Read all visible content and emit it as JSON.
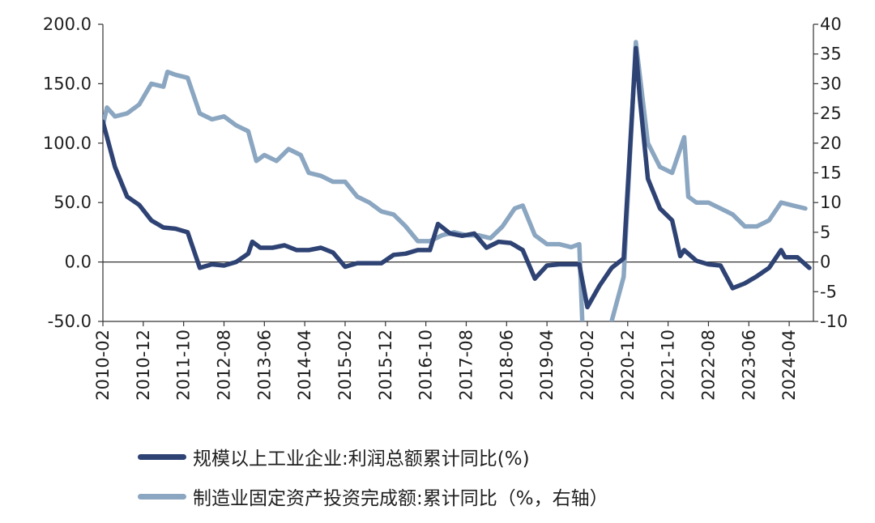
{
  "chart_data": {
    "type": "line",
    "x": [
      "2010-02",
      "2010-12",
      "2011-10",
      "2012-08",
      "2013-06",
      "2014-04",
      "2015-02",
      "2015-12",
      "2016-10",
      "2017-08",
      "2018-06",
      "2019-04",
      "2020-02",
      "2020-12",
      "2021-10",
      "2022-08",
      "2023-06",
      "2024-04"
    ],
    "y_left": {
      "ylim": [
        -50,
        200
      ],
      "ticks": [
        "200.0",
        "150.0",
        "100.0",
        "50.0",
        "0.0",
        "-50.0"
      ]
    },
    "y_right": {
      "ylim": [
        -10,
        40
      ],
      "ticks": [
        "40",
        "35",
        "30",
        "25",
        "20",
        "15",
        "10",
        "5",
        "0",
        "-5",
        "-10"
      ]
    },
    "series": [
      {
        "name": "规模以上工业企业:利润总额累计同比(%)",
        "axis": "left",
        "color": "#2e4374",
        "points": [
          [
            "2010-02",
            118
          ],
          [
            "2010-05",
            80
          ],
          [
            "2010-08",
            55
          ],
          [
            "2010-11",
            48
          ],
          [
            "2011-02",
            35
          ],
          [
            "2011-05",
            29
          ],
          [
            "2011-08",
            28
          ],
          [
            "2011-11",
            25
          ],
          [
            "2012-02",
            -5
          ],
          [
            "2012-05",
            -2
          ],
          [
            "2012-08",
            -3
          ],
          [
            "2012-11",
            0
          ],
          [
            "2013-02",
            7
          ],
          [
            "2013-03",
            17
          ],
          [
            "2013-05",
            12
          ],
          [
            "2013-08",
            12
          ],
          [
            "2013-11",
            14
          ],
          [
            "2014-02",
            10
          ],
          [
            "2014-05",
            10
          ],
          [
            "2014-08",
            12
          ],
          [
            "2014-11",
            8
          ],
          [
            "2015-02",
            -4
          ],
          [
            "2015-05",
            -1
          ],
          [
            "2015-08",
            -1
          ],
          [
            "2015-11",
            -1
          ],
          [
            "2016-02",
            6
          ],
          [
            "2016-05",
            7
          ],
          [
            "2016-08",
            10
          ],
          [
            "2016-11",
            10
          ],
          [
            "2017-01",
            32
          ],
          [
            "2017-04",
            24
          ],
          [
            "2017-07",
            22
          ],
          [
            "2017-10",
            24
          ],
          [
            "2018-01",
            12
          ],
          [
            "2018-04",
            17
          ],
          [
            "2018-07",
            16
          ],
          [
            "2018-10",
            10
          ],
          [
            "2019-01",
            -14
          ],
          [
            "2019-04",
            -3
          ],
          [
            "2019-07",
            -2
          ],
          [
            "2019-10",
            -2
          ],
          [
            "2019-12",
            -2
          ],
          [
            "2020-02",
            -38
          ],
          [
            "2020-05",
            -20
          ],
          [
            "2020-08",
            -5
          ],
          [
            "2020-11",
            3
          ],
          [
            "2021-02",
            180
          ],
          [
            "2021-03",
            138
          ],
          [
            "2021-05",
            70
          ],
          [
            "2021-08",
            45
          ],
          [
            "2021-11",
            35
          ],
          [
            "2022-01",
            5
          ],
          [
            "2022-02",
            10
          ],
          [
            "2022-05",
            1
          ],
          [
            "2022-08",
            -2
          ],
          [
            "2022-11",
            -3
          ],
          [
            "2023-02",
            -22
          ],
          [
            "2023-05",
            -18
          ],
          [
            "2023-08",
            -12
          ],
          [
            "2023-11",
            -5
          ],
          [
            "2024-02",
            10
          ],
          [
            "2024-03",
            4
          ],
          [
            "2024-06",
            4
          ],
          [
            "2024-09",
            -5
          ]
        ]
      },
      {
        "name": "制造业固定资产投资完成额:累计同比（%，右轴）",
        "axis": "right",
        "color": "#8ba6c1",
        "points": [
          [
            "2010-02",
            23
          ],
          [
            "2010-03",
            26
          ],
          [
            "2010-05",
            24.5
          ],
          [
            "2010-08",
            25
          ],
          [
            "2010-11",
            26.5
          ],
          [
            "2011-02",
            30
          ],
          [
            "2011-05",
            29.5
          ],
          [
            "2011-06",
            32
          ],
          [
            "2011-08",
            31.5
          ],
          [
            "2011-11",
            31
          ],
          [
            "2012-02",
            25
          ],
          [
            "2012-05",
            24
          ],
          [
            "2012-08",
            24.5
          ],
          [
            "2012-11",
            23
          ],
          [
            "2013-02",
            22
          ],
          [
            "2013-04",
            17
          ],
          [
            "2013-06",
            18
          ],
          [
            "2013-09",
            17
          ],
          [
            "2013-12",
            19
          ],
          [
            "2014-03",
            18
          ],
          [
            "2014-05",
            15
          ],
          [
            "2014-08",
            14.5
          ],
          [
            "2014-11",
            13.5
          ],
          [
            "2015-02",
            13.5
          ],
          [
            "2015-05",
            11
          ],
          [
            "2015-08",
            10
          ],
          [
            "2015-11",
            8.5
          ],
          [
            "2016-02",
            8
          ],
          [
            "2016-05",
            6
          ],
          [
            "2016-08",
            3.5
          ],
          [
            "2016-11",
            3.5
          ],
          [
            "2017-02",
            4.5
          ],
          [
            "2017-05",
            5
          ],
          [
            "2017-08",
            4.5
          ],
          [
            "2017-11",
            4.5
          ],
          [
            "2018-02",
            4
          ],
          [
            "2018-05",
            6
          ],
          [
            "2018-08",
            9
          ],
          [
            "2018-10",
            9.5
          ],
          [
            "2019-01",
            4.5
          ],
          [
            "2019-04",
            3
          ],
          [
            "2019-07",
            3
          ],
          [
            "2019-10",
            2.5
          ],
          [
            "2019-12",
            3
          ],
          [
            "2020-02",
            -32
          ],
          [
            "2020-05",
            -20
          ],
          [
            "2020-08",
            -10
          ],
          [
            "2020-11",
            -2.5
          ],
          [
            "2021-02",
            37
          ],
          [
            "2021-05",
            20
          ],
          [
            "2021-08",
            16
          ],
          [
            "2021-11",
            15
          ],
          [
            "2022-02",
            21
          ],
          [
            "2022-03",
            11
          ],
          [
            "2022-05",
            10
          ],
          [
            "2022-08",
            10
          ],
          [
            "2022-11",
            9
          ],
          [
            "2023-02",
            8
          ],
          [
            "2023-05",
            6
          ],
          [
            "2023-08",
            6
          ],
          [
            "2023-11",
            7
          ],
          [
            "2024-02",
            10
          ],
          [
            "2024-05",
            9.5
          ],
          [
            "2024-08",
            9
          ]
        ]
      }
    ],
    "legend": [
      "规模以上工业企业:利润总额累计同比(%)",
      "制造业固定资产投资完成额:累计同比（%，右轴）"
    ],
    "legend_position": "bottom",
    "grid": false
  }
}
